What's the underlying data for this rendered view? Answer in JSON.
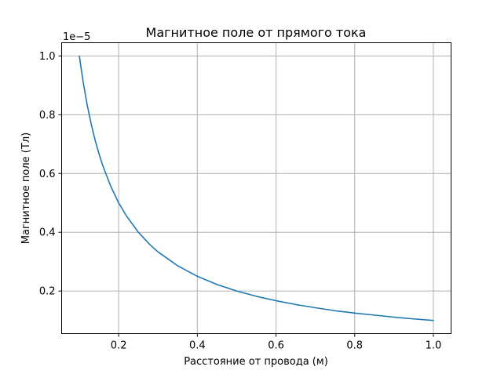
{
  "chart_data": {
    "type": "line",
    "title": "Магнитное поле от прямого тока",
    "xlabel": "Расстояние от провода (м)",
    "ylabel": "Магнитное поле (Тл)",
    "offset_text": "1e−5",
    "xlim": [
      0.055,
      1.045
    ],
    "ylim": [
      0.055,
      1.045
    ],
    "y_scale_factor": 1e-05,
    "grid": true,
    "x_ticks": [
      0.2,
      0.4,
      0.6,
      0.8,
      1.0
    ],
    "x_tick_labels": [
      "0.2",
      "0.4",
      "0.6",
      "0.8",
      "1.0"
    ],
    "y_ticks": [
      0.2,
      0.4,
      0.6,
      0.8,
      1.0
    ],
    "y_tick_labels": [
      "0.2",
      "0.4",
      "0.6",
      "0.8",
      "1.0"
    ],
    "series": [
      {
        "color": "#1f77b4",
        "x": [
          0.1,
          0.11,
          0.12,
          0.13,
          0.14,
          0.15,
          0.16,
          0.18,
          0.2,
          0.22,
          0.25,
          0.28,
          0.3,
          0.35,
          0.4,
          0.45,
          0.5,
          0.55,
          0.6,
          0.65,
          0.7,
          0.75,
          0.8,
          0.85,
          0.9,
          0.95,
          1.0
        ],
        "y": [
          1.0,
          0.909,
          0.833,
          0.769,
          0.714,
          0.667,
          0.625,
          0.556,
          0.5,
          0.455,
          0.4,
          0.357,
          0.333,
          0.286,
          0.25,
          0.222,
          0.2,
          0.182,
          0.167,
          0.154,
          0.143,
          0.133,
          0.125,
          0.118,
          0.111,
          0.105,
          0.1
        ]
      }
    ]
  }
}
